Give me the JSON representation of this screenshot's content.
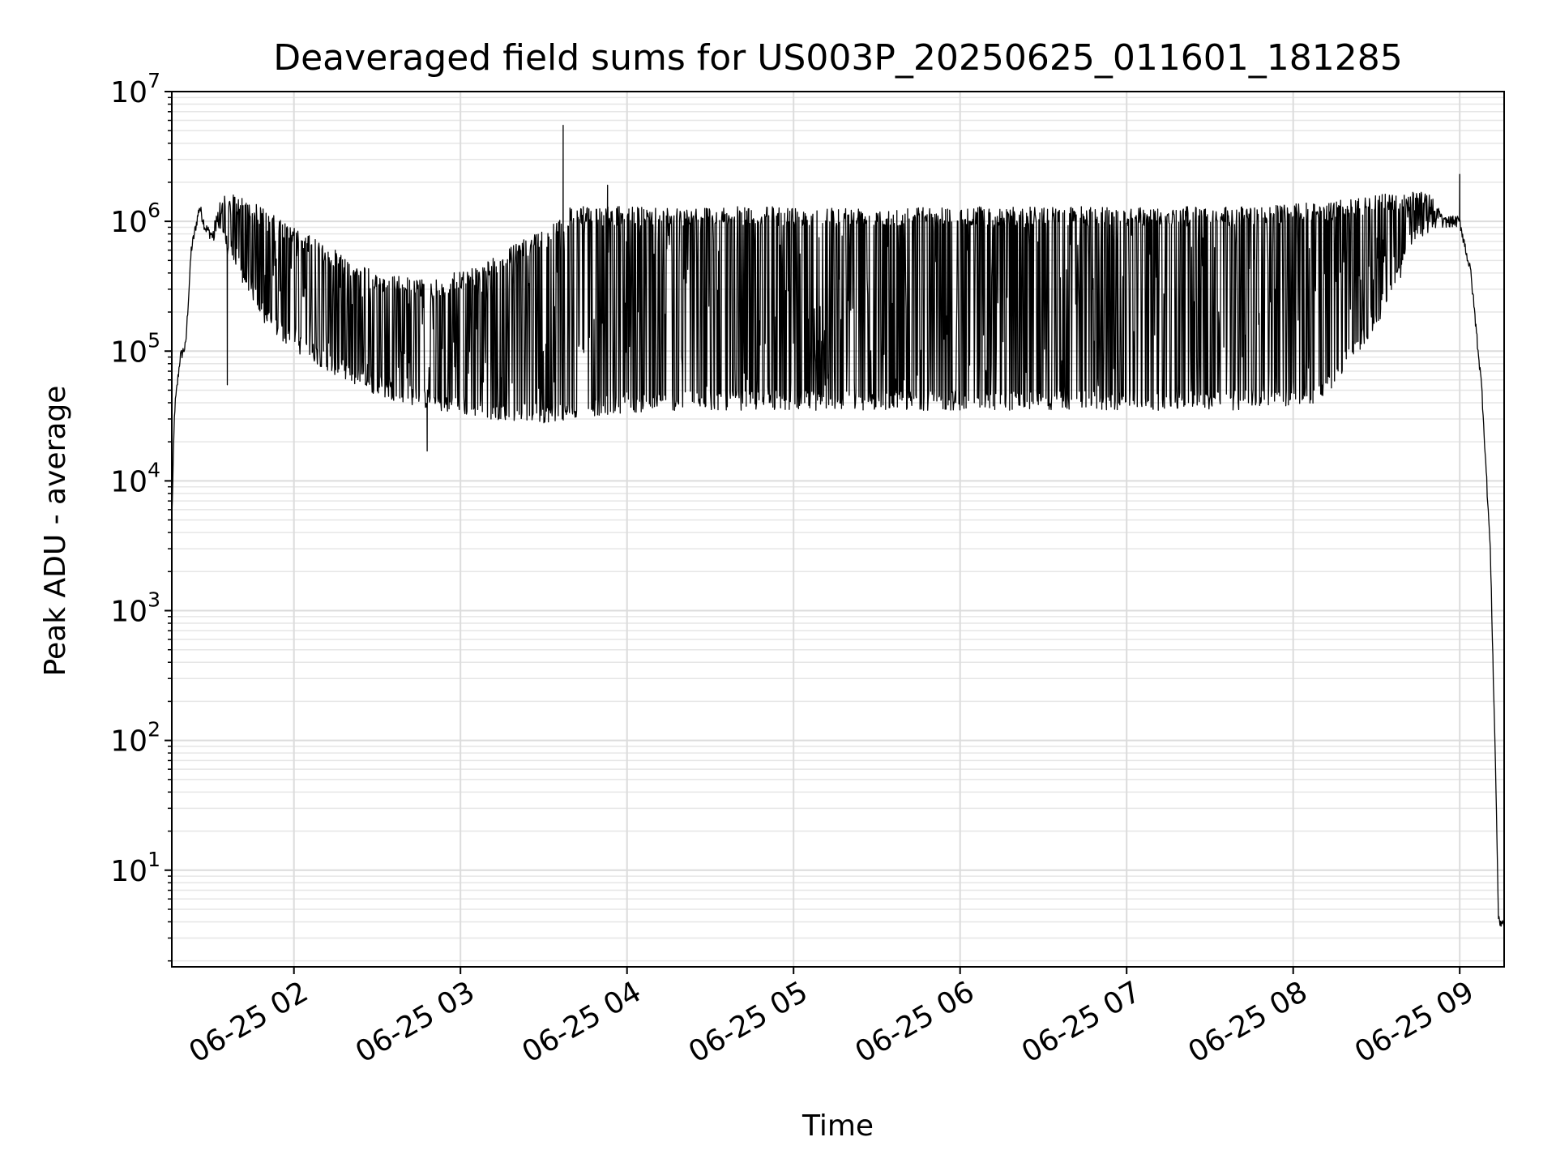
{
  "chart_data": {
    "type": "line",
    "title": "Deaveraged field sums for US003P_20250625_011601_181285",
    "xlabel": "Time",
    "ylabel": "Peak ADU - average",
    "yscale": "log",
    "ylim": [
      1.8,
      10000000
    ],
    "xlim": [
      "2025-06-25 01:16",
      "2025-06-25 09:16"
    ],
    "grid": true,
    "x_ticks": [
      "06-25 02",
      "06-25 03",
      "06-25 04",
      "06-25 05",
      "06-25 06",
      "06-25 07",
      "06-25 08",
      "06-25 09"
    ],
    "y_ticks": [
      {
        "value": 10,
        "base": "10",
        "exp": "1"
      },
      {
        "value": 100,
        "base": "10",
        "exp": "2"
      },
      {
        "value": 1000,
        "base": "10",
        "exp": "3"
      },
      {
        "value": 10000,
        "base": "10",
        "exp": "4"
      },
      {
        "value": 100000,
        "base": "10",
        "exp": "5"
      },
      {
        "value": 1000000,
        "base": "10",
        "exp": "6"
      },
      {
        "value": 10000000,
        "base": "10",
        "exp": "7"
      }
    ],
    "series": [
      {
        "name": "",
        "color": "#000000",
        "x": [
          "2025-06-25 01:16",
          "2025-06-25 01:17",
          "2025-06-25 01:19",
          "2025-06-25 01:21",
          "2025-06-25 01:23",
          "2025-06-25 01:26",
          "2025-06-25 01:28",
          "2025-06-25 01:30",
          "2025-06-25 01:33",
          "2025-06-25 01:36",
          "2025-06-25 01:40",
          "2025-06-25 01:45",
          "2025-06-25 01:50",
          "2025-06-25 02:00",
          "2025-06-25 02:15",
          "2025-06-25 02:30",
          "2025-06-25 02:50",
          "2025-06-25 03:10",
          "2025-06-25 03:30",
          "2025-06-25 03:40",
          "2025-06-25 03:55",
          "2025-06-25 04:20",
          "2025-06-25 05:00",
          "2025-06-25 05:40",
          "2025-06-25 06:20",
          "2025-06-25 07:00",
          "2025-06-25 07:40",
          "2025-06-25 08:10",
          "2025-06-25 08:30",
          "2025-06-25 08:45",
          "2025-06-25 08:55",
          "2025-06-25 09:00",
          "2025-06-25 09:04",
          "2025-06-25 09:08",
          "2025-06-25 09:11",
          "2025-06-25 09:13",
          "2025-06-25 09:14",
          "2025-06-25 09:16"
        ],
        "y": [
          5000,
          35000,
          90000,
          110000,
          600000,
          1300000,
          900000,
          800000,
          700000,
          550000,
          380000,
          250000,
          150000,
          100000,
          65000,
          45000,
          35000,
          30000,
          28000,
          30000,
          33000,
          35000,
          35000,
          35000,
          35000,
          35000,
          35000,
          40000,
          150000,
          700000,
          1000000,
          1000000,
          400000,
          50000,
          3000,
          50,
          4,
          4
        ],
        "envelope_upper": [
          5000,
          35000,
          90000,
          110000,
          600000,
          1300000,
          1000000,
          1000000,
          1500000,
          1600000,
          1600000,
          1500000,
          1200000,
          900000,
          600000,
          400000,
          350000,
          500000,
          900000,
          1300000,
          1300000,
          1300000,
          1300000,
          1300000,
          1300000,
          1300000,
          1300000,
          1400000,
          1600000,
          1700000,
          1500000,
          1000000,
          400000,
          50000,
          3000,
          50,
          4,
          4
        ],
        "spikes": [
          {
            "x": "2025-06-25 01:36",
            "y": 55000
          },
          {
            "x": "2025-06-25 02:48",
            "y": 17000
          },
          {
            "x": "2025-06-25 03:37",
            "y": 5500000
          },
          {
            "x": "2025-06-25 03:53",
            "y": 1900000
          },
          {
            "x": "2025-06-25 09:00",
            "y": 2300000
          }
        ]
      }
    ]
  }
}
